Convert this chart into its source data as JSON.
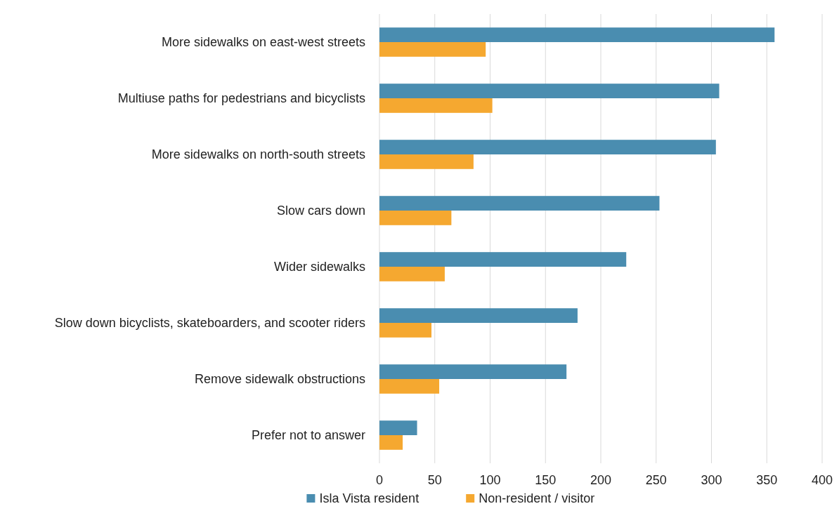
{
  "chart_data": {
    "type": "bar",
    "orientation": "horizontal",
    "categories": [
      "More sidewalks on east-west streets",
      "Multiuse paths for pedestrians and bicyclists",
      "More sidewalks on north-south streets",
      "Slow cars down",
      "Wider sidewalks",
      "Slow down bicyclists, skateboarders, and scooter riders",
      "Remove sidewalk obstructions",
      "Prefer not to answer"
    ],
    "series": [
      {
        "name": "Isla Vista resident",
        "color": "#4a8db0",
        "values": [
          357,
          307,
          304,
          253,
          223,
          179,
          169,
          34
        ]
      },
      {
        "name": "Non-resident / visitor",
        "color": "#f5a830",
        "values": [
          96,
          102,
          85,
          65,
          59,
          47,
          54,
          21
        ]
      }
    ],
    "xlim": [
      0,
      400
    ],
    "xticks": [
      0,
      50,
      100,
      150,
      200,
      250,
      300,
      350,
      400
    ],
    "grid": "x",
    "legend": "bottom"
  }
}
